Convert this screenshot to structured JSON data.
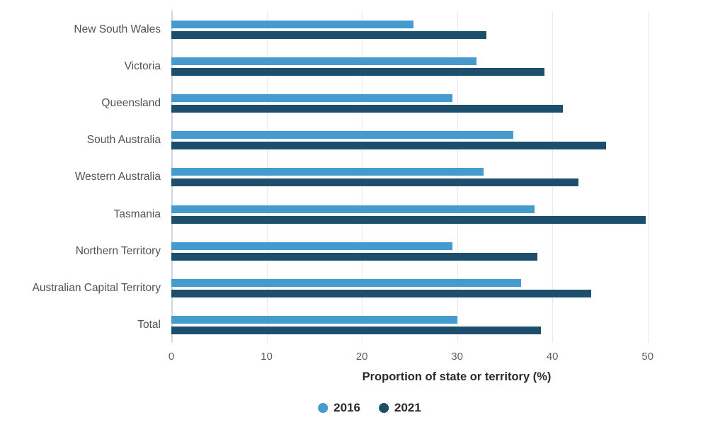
{
  "chart_data": {
    "type": "bar",
    "orientation": "horizontal",
    "title": "",
    "xlabel": "Proportion of state or territory (%)",
    "ylabel": "",
    "xlim": [
      0,
      55
    ],
    "xticks": [
      0,
      10,
      20,
      30,
      40,
      50
    ],
    "grid": true,
    "legend_position": "bottom",
    "categories": [
      "New South Wales",
      "Victoria",
      "Queensland",
      "South Australia",
      "Western Australia",
      "Tasmania",
      "Northern Territory",
      "Australian Capital Territory",
      "Total"
    ],
    "series": [
      {
        "name": "2016",
        "color": "#459BCE",
        "values": [
          25.4,
          32.0,
          29.5,
          35.9,
          32.8,
          38.1,
          29.5,
          36.7,
          30.0
        ]
      },
      {
        "name": "2021",
        "color": "#1D4E6B",
        "values": [
          33.1,
          39.2,
          41.1,
          45.6,
          42.7,
          49.8,
          38.4,
          44.1,
          38.8
        ]
      }
    ]
  },
  "colors": {
    "gridline": "#e9e9e9",
    "axis_line": "#cfd9e6",
    "tick_text": "#5f5f5f",
    "category_text": "#525252",
    "title_text": "#2a2a2a"
  }
}
